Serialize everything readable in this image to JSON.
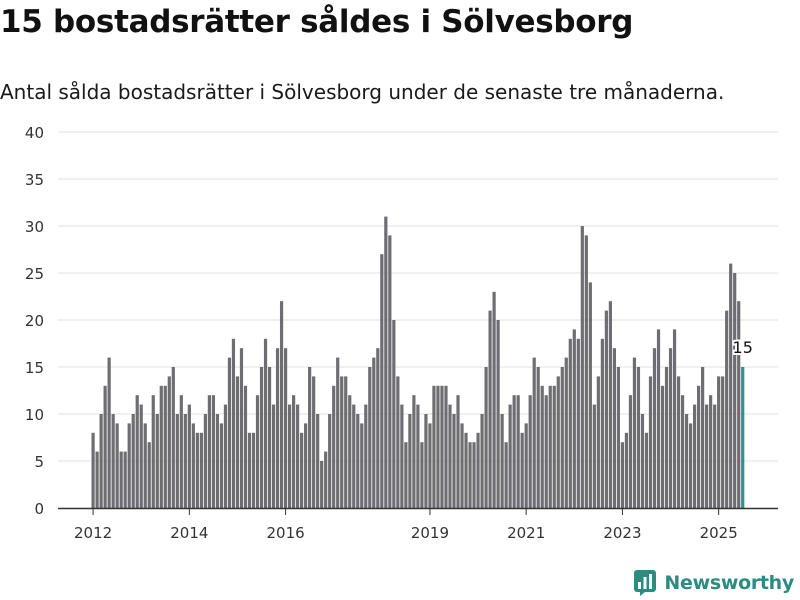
{
  "header": {
    "title": "15 bostadsrätter såldes i Sölvesborg",
    "subtitle": "Antal sålda bostadsrätter i Sölvesborg under de senaste tre månaderna."
  },
  "brand": {
    "name": "Newsworthy",
    "icon": "newsworthy-logo-icon",
    "color": "#2b8c82"
  },
  "colors": {
    "bar": "#6e6d72",
    "highlight": "#1e9a92",
    "grid": "#e0e0e0",
    "axis": "#333333"
  },
  "chart_data": {
    "type": "bar",
    "title": "15 bostadsrätter såldes i Sölvesborg",
    "subtitle": "Antal sålda bostadsrätter i Sölvesborg under de senaste tre månaderna.",
    "xlabel": "",
    "ylabel": "",
    "ylim": [
      0,
      40
    ],
    "yticks": [
      0,
      5,
      10,
      15,
      20,
      25,
      30,
      35,
      40
    ],
    "xticks": [
      "2012",
      "2014",
      "2016",
      "2019",
      "2021",
      "2023",
      "2025"
    ],
    "xtick_index": [
      0,
      24,
      48,
      84,
      108,
      132,
      156
    ],
    "grid": true,
    "legend": "none",
    "highlight_index": 162,
    "annotation": {
      "index": 162,
      "label": "15"
    },
    "values": [
      8,
      6,
      10,
      13,
      16,
      10,
      9,
      6,
      6,
      9,
      10,
      12,
      11,
      9,
      7,
      12,
      10,
      13,
      13,
      14,
      15,
      10,
      12,
      10,
      11,
      9,
      8,
      8,
      10,
      12,
      12,
      10,
      9,
      11,
      16,
      18,
      14,
      17,
      13,
      8,
      8,
      12,
      15,
      18,
      15,
      11,
      17,
      22,
      17,
      11,
      12,
      11,
      8,
      9,
      15,
      14,
      10,
      5,
      6,
      10,
      13,
      16,
      14,
      14,
      12,
      11,
      10,
      9,
      11,
      15,
      16,
      17,
      27,
      31,
      29,
      20,
      14,
      11,
      7,
      10,
      12,
      11,
      7,
      10,
      9,
      13,
      13,
      13,
      13,
      11,
      10,
      12,
      9,
      8,
      7,
      7,
      8,
      10,
      15,
      21,
      23,
      20,
      10,
      7,
      11,
      12,
      12,
      8,
      9,
      12,
      16,
      15,
      13,
      12,
      13,
      13,
      14,
      15,
      16,
      18,
      19,
      18,
      30,
      29,
      24,
      11,
      14,
      18,
      21,
      22,
      17,
      15,
      7,
      8,
      12,
      16,
      15,
      10,
      8,
      14,
      17,
      19,
      13,
      15,
      17,
      19,
      14,
      12,
      10,
      9,
      11,
      13,
      15,
      11,
      12,
      11,
      14,
      14,
      21,
      26,
      25,
      22,
      15
    ]
  }
}
